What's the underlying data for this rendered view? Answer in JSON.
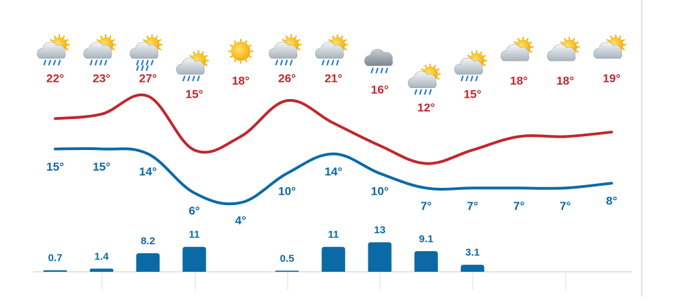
{
  "chart_data": {
    "type": "line",
    "series": [
      {
        "color": "#c0272d",
        "values": [
          22,
          23,
          27,
          15,
          18,
          26,
          21,
          16,
          12,
          15,
          18,
          18,
          19
        ],
        "value_labels": [
          "22°",
          "23°",
          "27°",
          "15°",
          "18°",
          "26°",
          "21°",
          "16°",
          "12°",
          "15°",
          "18°",
          "18°",
          "19°"
        ]
      },
      {
        "color": "#0b6aa6",
        "values": [
          15,
          15,
          14,
          6,
          4,
          10,
          14,
          10,
          7,
          7,
          7,
          7,
          8
        ],
        "value_labels": [
          "15°",
          "15°",
          "14°",
          "6°",
          "4°",
          "10°",
          "14°",
          "10°",
          "7°",
          "7°",
          "7°",
          "7°",
          "8°"
        ]
      }
    ],
    "precipitation": {
      "type": "bar",
      "color": "#0b6aa6",
      "values": [
        0.7,
        1.4,
        8.2,
        11,
        null,
        0.5,
        11,
        13,
        9.1,
        3.1,
        null,
        null,
        null
      ]
    }
  }
}
